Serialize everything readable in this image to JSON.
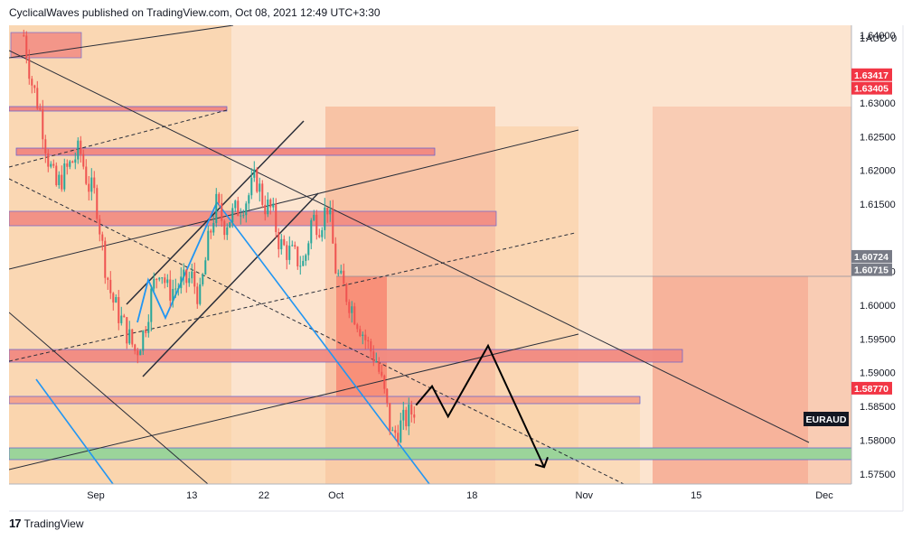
{
  "header": {
    "publish_line": "CyclicalWaves published on TradingView.com, Oct 08, 2021 12:49 UTC+3:30"
  },
  "footer": {
    "brand": "TradingView",
    "logo_glyph": "17"
  },
  "symbol_label": "EURAUD",
  "currency_label": "AUD",
  "colors": {
    "up_candle": "#26a69a",
    "down_candle": "#ef5350",
    "bg_zone": "#fce4cf",
    "red_zone": "#f28b82",
    "green_zone": "#9bd49a",
    "blue_line": "#2196f3",
    "price_red": "#f23645",
    "price_grey": "#787b86"
  },
  "chart_data": {
    "type": "candlestick",
    "title": "",
    "x_labels": [
      {
        "label": "Sep",
        "date": "2021-09-01"
      },
      {
        "label": "13",
        "date": "2021-09-13"
      },
      {
        "label": "22",
        "date": "2021-09-22"
      },
      {
        "label": "Oct",
        "date": "2021-10-01"
      },
      {
        "label": "18",
        "date": "2021-10-18"
      },
      {
        "label": "Nov",
        "date": "2021-11-01"
      },
      {
        "label": "15",
        "date": "2021-11-15"
      },
      {
        "label": "Dec",
        "date": "2021-12-01"
      }
    ],
    "y_ticks": [
      "1.64000",
      "1.63000",
      "1.62500",
      "1.62000",
      "1.61500",
      "1.60500",
      "1.60000",
      "1.59500",
      "1.59000",
      "1.58500",
      "1.58000",
      "1.57500"
    ],
    "ylim": [
      1.5735,
      1.6415
    ],
    "price_labels": [
      {
        "value": "1.63417",
        "color": "#f23645"
      },
      {
        "value": "1.63405",
        "color": "#f23645"
      },
      {
        "value": "1.60724",
        "color": "#787b86"
      },
      {
        "value": "1.60715",
        "color": "#787b86"
      },
      {
        "value": "1.58770",
        "color": "#f23645"
      }
    ],
    "price_path": [
      {
        "date": "2021-08-23",
        "price": 1.64
      },
      {
        "date": "2021-08-24",
        "price": 1.633
      },
      {
        "date": "2021-08-25",
        "price": 1.629
      },
      {
        "date": "2021-08-26",
        "price": 1.622
      },
      {
        "date": "2021-08-27",
        "price": 1.6175
      },
      {
        "date": "2021-08-30",
        "price": 1.623
      },
      {
        "date": "2021-08-31",
        "price": 1.618
      },
      {
        "date": "2021-09-01",
        "price": 1.616
      },
      {
        "date": "2021-09-02",
        "price": 1.607
      },
      {
        "date": "2021-09-03",
        "price": 1.601
      },
      {
        "date": "2021-09-06",
        "price": 1.593
      },
      {
        "date": "2021-09-07",
        "price": 1.596
      },
      {
        "date": "2021-09-08",
        "price": 1.602
      },
      {
        "date": "2021-09-09",
        "price": 1.606
      },
      {
        "date": "2021-09-10",
        "price": 1.602
      },
      {
        "date": "2021-09-13",
        "price": 1.604
      },
      {
        "date": "2021-09-14",
        "price": 1.601
      },
      {
        "date": "2021-09-15",
        "price": 1.609
      },
      {
        "date": "2021-09-16",
        "price": 1.615
      },
      {
        "date": "2021-09-17",
        "price": 1.612
      },
      {
        "date": "2021-09-20",
        "price": 1.616
      },
      {
        "date": "2021-09-21",
        "price": 1.619
      },
      {
        "date": "2021-09-22",
        "price": 1.615
      },
      {
        "date": "2021-09-23",
        "price": 1.614
      },
      {
        "date": "2021-09-24",
        "price": 1.609
      },
      {
        "date": "2021-09-27",
        "price": 1.606
      },
      {
        "date": "2021-09-28",
        "price": 1.613
      },
      {
        "date": "2021-09-29",
        "price": 1.612
      },
      {
        "date": "2021-09-30",
        "price": 1.615
      },
      {
        "date": "2021-10-01",
        "price": 1.605
      },
      {
        "date": "2021-10-04",
        "price": 1.597
      },
      {
        "date": "2021-10-05",
        "price": 1.594
      },
      {
        "date": "2021-10-06",
        "price": 1.592
      },
      {
        "date": "2021-10-07",
        "price": 1.587
      },
      {
        "date": "2021-10-08",
        "price": 1.5805
      },
      {
        "date": "2021-10-11",
        "price": 1.585
      }
    ],
    "projection_path": [
      {
        "date": "2021-10-11",
        "price": 1.5852
      },
      {
        "date": "2021-10-13",
        "price": 1.588
      },
      {
        "date": "2021-10-15",
        "price": 1.5835
      },
      {
        "date": "2021-10-20",
        "price": 1.594
      },
      {
        "date": "2021-10-27",
        "price": 1.576
      }
    ]
  }
}
